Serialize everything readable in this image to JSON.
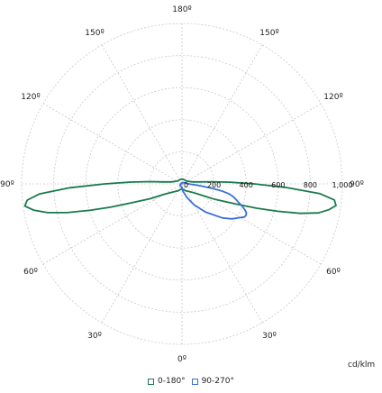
{
  "chart_data": {
    "type": "polar-line",
    "unit_label": "cd/klm",
    "angle_labels": [
      "180º",
      "150º",
      "120º",
      "90º",
      "60º",
      "30º",
      "0º",
      "30º",
      "60º",
      "90º",
      "120º",
      "150º"
    ],
    "radial_ticks": [
      0,
      200,
      400,
      600,
      800,
      1000
    ],
    "radial_tick_labels": [
      "0",
      "200",
      "400",
      "600",
      "800",
      "1,000"
    ],
    "rmax": 1000,
    "legend_position": "bottom-center",
    "grid": true,
    "series": [
      {
        "name": "0-180°",
        "color": "#1a7a4c",
        "angles_deg": [
          0,
          10,
          20,
          30,
          40,
          50,
          60,
          65,
          70,
          72,
          74,
          76,
          78,
          80,
          82,
          84,
          86,
          88,
          90,
          92,
          94,
          96,
          100,
          110,
          120,
          140,
          160,
          180
        ],
        "right_values": [
          30,
          35,
          40,
          50,
          60,
          80,
          140,
          230,
          380,
          490,
          620,
          760,
          870,
          930,
          970,
          955,
          860,
          650,
          450,
          300,
          190,
          120,
          70,
          45,
          35,
          30,
          30,
          30
        ],
        "left_values": [
          30,
          35,
          40,
          50,
          60,
          80,
          130,
          220,
          360,
          470,
          600,
          740,
          860,
          940,
          990,
          970,
          890,
          700,
          480,
          320,
          200,
          120,
          70,
          45,
          35,
          30,
          30,
          30
        ]
      },
      {
        "name": "90-270°",
        "color": "#3a6fd8",
        "angles_deg": [
          0,
          10,
          20,
          30,
          40,
          50,
          55,
          60,
          62,
          64,
          66,
          68,
          70,
          72,
          74,
          76,
          78,
          80,
          82,
          85,
          90,
          100,
          120,
          150,
          180
        ],
        "right_values": [
          30,
          50,
          90,
          150,
          230,
          330,
          380,
          420,
          440,
          445,
          440,
          420,
          395,
          370,
          350,
          330,
          300,
          250,
          180,
          100,
          40,
          25,
          15,
          10,
          8
        ],
        "left_values": [
          20,
          20,
          18,
          16,
          15,
          15,
          14,
          14,
          14,
          13,
          13,
          12,
          12,
          12,
          11,
          11,
          10,
          10,
          10,
          10,
          10,
          8,
          6,
          4,
          3
        ]
      }
    ]
  }
}
